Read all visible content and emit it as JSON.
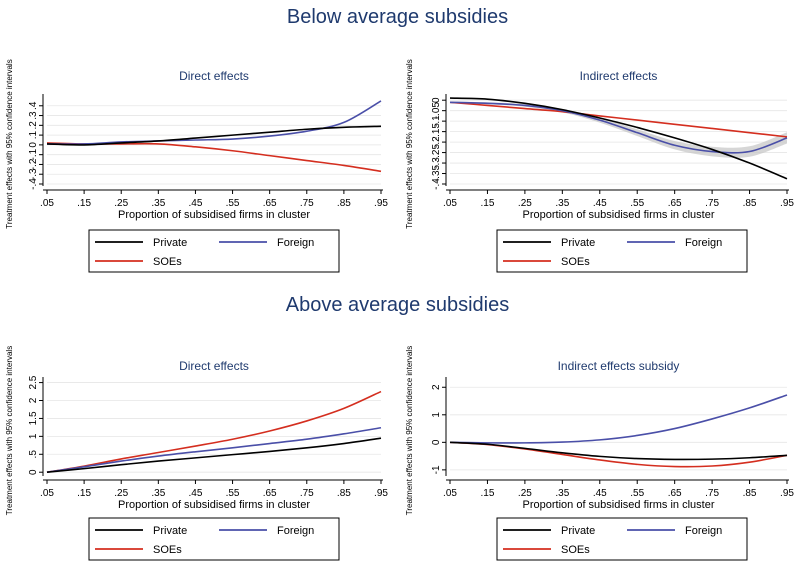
{
  "titles": {
    "top": "Below average subsidies",
    "bottom": "Above average subsidies"
  },
  "colors": {
    "Private": "#000000",
    "Foreign": "#4a4fa8",
    "SOEs": "#d42e1f",
    "band": "#c8c8c8"
  },
  "chart_data": [
    {
      "type": "line",
      "title": "Direct effects",
      "xlabel": "Proportion of subsidised firms in cluster",
      "ylabel": "Treatment effects  with 95% confidence intervals",
      "xticks": [
        ".05",
        ".15",
        ".25",
        ".35",
        ".45",
        ".55",
        ".65",
        ".75",
        ".85",
        ".95"
      ],
      "yticks": [
        "-.4",
        "-.3",
        "-.2",
        "-.1",
        "0",
        ".1",
        ".2",
        ".3",
        ".4"
      ],
      "xlim": [
        0.05,
        0.95
      ],
      "ylim": [
        -0.4,
        0.5
      ],
      "x": [
        0.05,
        0.15,
        0.25,
        0.35,
        0.45,
        0.55,
        0.65,
        0.75,
        0.85,
        0.95
      ],
      "series": [
        {
          "name": "Private",
          "values": [
            0.01,
            0.0,
            0.02,
            0.04,
            0.07,
            0.1,
            0.13,
            0.16,
            0.18,
            0.19
          ]
        },
        {
          "name": "Foreign",
          "values": [
            0.01,
            0.01,
            0.03,
            0.04,
            0.05,
            0.06,
            0.09,
            0.14,
            0.23,
            0.45
          ]
        },
        {
          "name": "SOEs",
          "values": [
            0.02,
            0.01,
            0.01,
            0.01,
            -0.02,
            -0.06,
            -0.11,
            -0.16,
            -0.21,
            -0.27
          ]
        }
      ],
      "legend": [
        "Private",
        "Foreign",
        "SOEs"
      ]
    },
    {
      "type": "line",
      "title": "Indirect effects",
      "xlabel": "Proportion of subsidised firms in cluster",
      "ylabel": "Treatment effects  with 95% confidence intervals",
      "xticks": [
        ".05",
        ".15",
        ".25",
        ".35",
        ".45",
        ".55",
        ".65",
        ".75",
        ".85",
        ".95"
      ],
      "yticks": [
        "-.4",
        "-.35",
        "-.3",
        "-.25",
        "-.2",
        "-.15",
        "-.1",
        "-.05",
        "0"
      ],
      "xlim": [
        0.05,
        0.95
      ],
      "ylim": [
        -0.4,
        0.02
      ],
      "x": [
        0.05,
        0.15,
        0.25,
        0.35,
        0.45,
        0.55,
        0.65,
        0.75,
        0.85,
        0.95
      ],
      "series": [
        {
          "name": "Private",
          "values": [
            0.01,
            0.005,
            -0.015,
            -0.045,
            -0.085,
            -0.13,
            -0.18,
            -0.235,
            -0.3,
            -0.375
          ]
        },
        {
          "name": "Foreign",
          "values": [
            -0.01,
            -0.015,
            -0.025,
            -0.05,
            -0.095,
            -0.155,
            -0.215,
            -0.245,
            -0.245,
            -0.18
          ]
        },
        {
          "name": "SOEs",
          "values": [
            -0.01,
            -0.025,
            -0.04,
            -0.055,
            -0.075,
            -0.095,
            -0.115,
            -0.135,
            -0.155,
            -0.175
          ]
        }
      ],
      "confidence_band": {
        "series": "Foreign",
        "half_width": [
          0.004,
          0.005,
          0.006,
          0.008,
          0.012,
          0.016,
          0.02,
          0.023,
          0.025,
          0.027
        ]
      },
      "legend": [
        "Private",
        "Foreign",
        "SOEs"
      ]
    },
    {
      "type": "line",
      "title": "Direct effects",
      "xlabel": "Proportion of subsidised firms in cluster",
      "ylabel": "Treatment effects  with 95% confidence intervals",
      "xticks": [
        ".05",
        ".15",
        ".25",
        ".35",
        ".45",
        ".55",
        ".65",
        ".75",
        ".85",
        ".95"
      ],
      "yticks": [
        "0",
        ".5",
        "1",
        "1.5",
        "2",
        "2.5"
      ],
      "xlim": [
        0.05,
        0.95
      ],
      "ylim": [
        -0.05,
        2.6
      ],
      "x": [
        0.05,
        0.15,
        0.25,
        0.35,
        0.45,
        0.55,
        0.65,
        0.75,
        0.85,
        0.95
      ],
      "series": [
        {
          "name": "Private",
          "values": [
            0.0,
            0.1,
            0.21,
            0.31,
            0.4,
            0.49,
            0.58,
            0.68,
            0.8,
            0.95
          ]
        },
        {
          "name": "Foreign",
          "values": [
            0.0,
            0.15,
            0.31,
            0.45,
            0.57,
            0.68,
            0.8,
            0.92,
            1.07,
            1.24
          ]
        },
        {
          "name": "SOEs",
          "values": [
            0.0,
            0.17,
            0.37,
            0.55,
            0.73,
            0.92,
            1.15,
            1.43,
            1.78,
            2.25
          ]
        }
      ],
      "legend": [
        "Private",
        "Foreign",
        "SOEs"
      ]
    },
    {
      "type": "line",
      "title": "Indirect effects subsidy",
      "xlabel": "Proportion of subsidised firms in cluster",
      "ylabel": "Treatment effects  with 95% confidence intervals",
      "xticks": [
        ".05",
        ".15",
        ".25",
        ".35",
        ".45",
        ".55",
        ".65",
        ".75",
        ".85",
        ".95"
      ],
      "yticks": [
        "-1",
        "0",
        "1",
        "2"
      ],
      "xlim": [
        0.05,
        0.95
      ],
      "ylim": [
        -1.15,
        2.3
      ],
      "x": [
        0.05,
        0.15,
        0.25,
        0.35,
        0.45,
        0.55,
        0.65,
        0.75,
        0.85,
        0.95
      ],
      "series": [
        {
          "name": "Private",
          "values": [
            0.0,
            -0.07,
            -0.22,
            -0.38,
            -0.51,
            -0.59,
            -0.62,
            -0.61,
            -0.56,
            -0.47
          ]
        },
        {
          "name": "Foreign",
          "values": [
            0.0,
            -0.02,
            -0.02,
            0.01,
            0.09,
            0.25,
            0.5,
            0.85,
            1.25,
            1.72
          ]
        },
        {
          "name": "SOEs",
          "values": [
            0.0,
            -0.08,
            -0.24,
            -0.44,
            -0.64,
            -0.8,
            -0.88,
            -0.86,
            -0.72,
            -0.47
          ]
        }
      ],
      "legend": [
        "Private",
        "Foreign",
        "SOEs"
      ]
    }
  ]
}
